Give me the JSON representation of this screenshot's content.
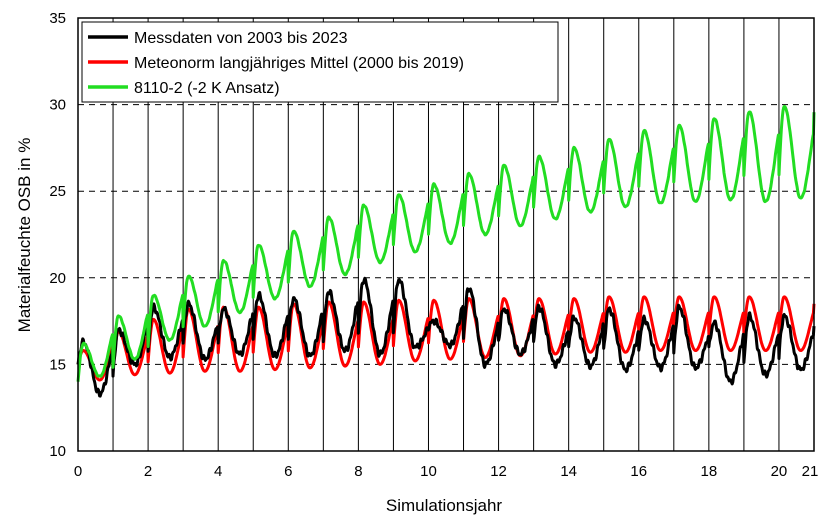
{
  "chart_data": {
    "type": "line",
    "xlabel": "Simulationsjahr",
    "ylabel": "Materialfeuchte OSB  in %",
    "xlim": [
      0,
      21
    ],
    "ylim": [
      10,
      35
    ],
    "x_ticks": [
      0,
      2,
      4,
      6,
      8,
      10,
      12,
      14,
      16,
      18,
      20,
      21
    ],
    "y_ticks": [
      10,
      15,
      20,
      25,
      30,
      35
    ],
    "grid": {
      "vertical": "solid at every 1 year",
      "horizontal": "dashed at 15, 20, 25, 30"
    },
    "legend_position": "top-left",
    "series": [
      {
        "name": "Messdaten von 2003 bis 2023",
        "color": "#000000",
        "annual_peaks": [
          16.3,
          17.0,
          18.3,
          18.5,
          18.2,
          19.0,
          18.8,
          19.2,
          19.9,
          19.9,
          17.5,
          19.4,
          18.2,
          18.3,
          17.7,
          18.2,
          17.6,
          18.3,
          17.4,
          17.8,
          17.8
        ],
        "annual_troughs": [
          13.3,
          15.0,
          15.4,
          15.3,
          15.6,
          15.5,
          15.5,
          15.8,
          15.6,
          16.0,
          16.1,
          15.0,
          15.6,
          15.0,
          14.9,
          14.7,
          14.8,
          14.8,
          14.0,
          14.4,
          14.7
        ],
        "end_value": 17.2
      },
      {
        "name": "Meteonorm langjähriges Mittel (2000 bis 2019)",
        "color": "#ff0000",
        "annual_peaks": [
          15.8,
          16.9,
          17.6,
          18.2,
          18.3,
          18.3,
          18.5,
          18.6,
          18.6,
          18.7,
          18.7,
          18.8,
          18.8,
          18.8,
          18.8,
          18.9,
          18.9,
          18.9,
          18.9,
          18.9,
          18.9
        ],
        "annual_troughs": [
          14.1,
          14.4,
          14.5,
          14.6,
          14.6,
          14.7,
          14.8,
          14.9,
          15.0,
          15.2,
          15.3,
          15.4,
          15.5,
          15.6,
          15.7,
          15.7,
          15.8,
          15.8,
          15.8,
          15.8,
          15.8
        ],
        "end_value": 18.5
      },
      {
        "name": "8110-2 (-2 K Ansatz)",
        "color": "#22dd22",
        "annual_peaks": [
          16.2,
          17.8,
          19.0,
          20.1,
          21.0,
          21.9,
          22.7,
          23.5,
          24.2,
          24.8,
          25.4,
          26.0,
          26.5,
          27.0,
          27.5,
          28.0,
          28.5,
          28.8,
          29.2,
          29.6,
          29.9
        ],
        "annual_troughs": [
          14.3,
          15.3,
          16.4,
          17.2,
          18.0,
          18.8,
          19.5,
          20.2,
          20.9,
          21.5,
          22.0,
          22.5,
          23.0,
          23.4,
          23.8,
          24.1,
          24.3,
          24.4,
          24.5,
          24.4,
          24.6
        ],
        "end_value": 29.6
      }
    ]
  }
}
